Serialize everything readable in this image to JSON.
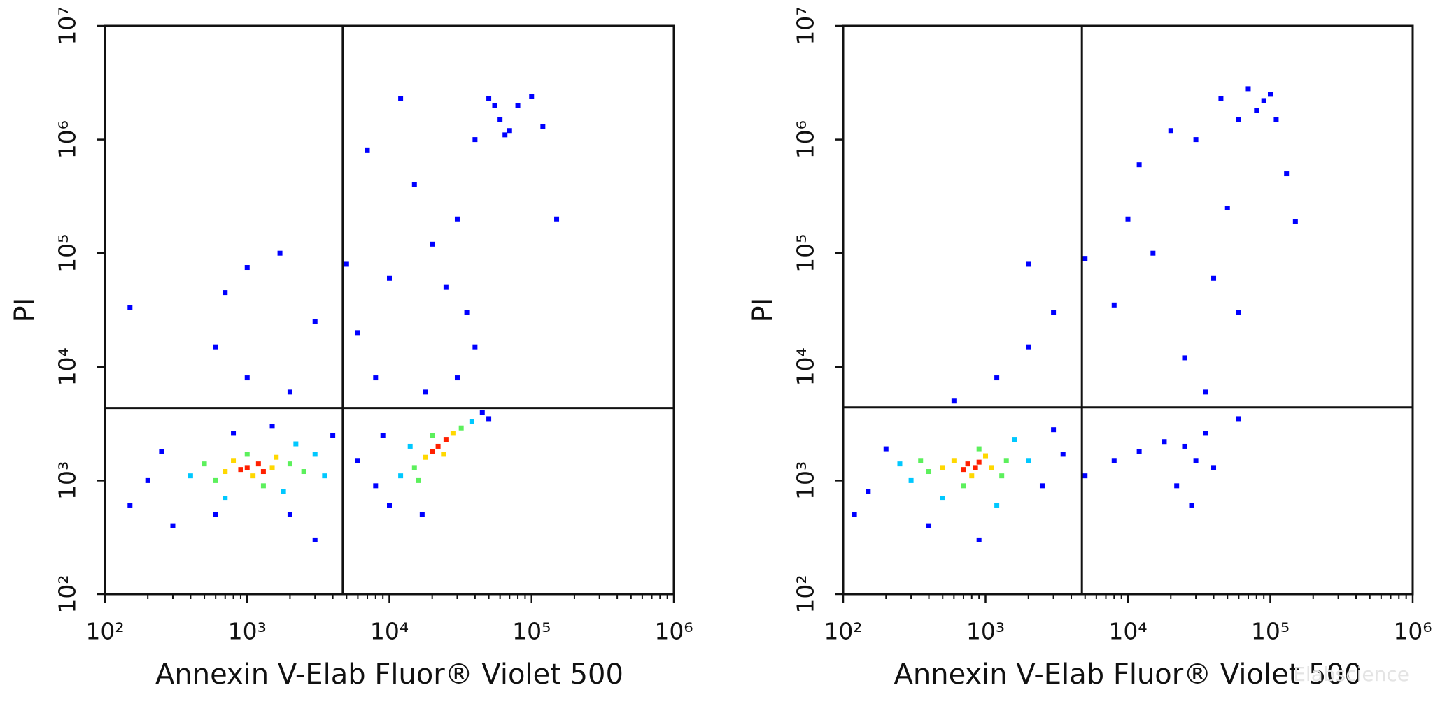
{
  "chart_data": [
    {
      "type": "scatter",
      "xlabel": "Annexin V-Elab Fluor® Violet 500",
      "ylabel": "PI",
      "xscale": "log",
      "yscale": "log",
      "xlim": [
        100,
        1000000
      ],
      "ylim": [
        100,
        10000000
      ],
      "xticks": [
        {
          "value": 100,
          "label": "10²"
        },
        {
          "value": 1000,
          "label": "10³"
        },
        {
          "value": 10000,
          "label": "10⁴"
        },
        {
          "value": 100000,
          "label": "10⁵"
        },
        {
          "value": 1000000,
          "label": "10⁶"
        }
      ],
      "yticks": [
        {
          "value": 100,
          "label": "10²"
        },
        {
          "value": 1000,
          "label": "10³"
        },
        {
          "value": 10000,
          "label": "10⁴"
        },
        {
          "value": 100000,
          "label": "10⁵"
        },
        {
          "value": 1000000,
          "label": "10⁶"
        },
        {
          "value": 10000000,
          "label": "10⁷"
        }
      ],
      "minor_ticks": true,
      "gates": {
        "x": 4700,
        "y": 4350
      },
      "series": [
        {
          "color": "#0000ff",
          "x": [
            200,
            150,
            300,
            250,
            600,
            2000,
            3000,
            4000,
            1500,
            800,
            6000,
            8000,
            10000,
            17000,
            9000,
            45000,
            50000,
            600,
            1000,
            2000,
            3000,
            700,
            1700,
            1000,
            150,
            6000,
            8000,
            10000,
            15000,
            20000,
            25000,
            30000,
            35000,
            40000,
            50000,
            60000,
            70000,
            80000,
            100000,
            65000,
            55000,
            120000,
            150000,
            12000,
            7000,
            5000,
            40000,
            30000,
            18000
          ],
          "y": [
            1000,
            600,
            400,
            1800,
            500,
            500,
            300,
            2500,
            3000,
            2600,
            1500,
            900,
            600,
            500,
            2500,
            4000,
            3500,
            15000,
            8000,
            6000,
            25000,
            45000,
            100000,
            75000,
            33000,
            20000,
            8000,
            60000,
            400000,
            120000,
            50000,
            200000,
            30000,
            1000000,
            2300000,
            1500000,
            1200000,
            2000000,
            2400000,
            1100000,
            2000000,
            1300000,
            200000,
            2300000,
            800000,
            80000,
            15000,
            8000,
            6000
          ]
        },
        {
          "color": "#00c8ff",
          "x": [
            400,
            3000,
            1800,
            700,
            3500,
            12000,
            38000,
            14000,
            2200
          ],
          "y": [
            1100,
            1700,
            800,
            700,
            1100,
            1100,
            3300,
            2000,
            2100
          ]
        },
        {
          "color": "#5cf05c",
          "x": [
            600,
            2000,
            1000,
            500,
            2500,
            1300,
            15000,
            32000,
            20000,
            16000
          ],
          "y": [
            1000,
            1400,
            1700,
            1400,
            1200,
            900,
            1300,
            2900,
            2500,
            1000
          ]
        },
        {
          "color": "#ffd800",
          "x": [
            800,
            1500,
            1100,
            700,
            1600,
            18000,
            28000,
            24000
          ],
          "y": [
            1500,
            1300,
            1100,
            1200,
            1600,
            1600,
            2600,
            1700
          ]
        },
        {
          "color": "#ff2000",
          "x": [
            1000,
            1200,
            900,
            1300,
            22000,
            25000,
            20000
          ],
          "y": [
            1300,
            1400,
            1250,
            1200,
            2000,
            2300,
            1800
          ]
        }
      ]
    },
    {
      "type": "scatter",
      "xlabel": "Annexin V-Elab Fluor® Violet 500",
      "ylabel": "PI",
      "xscale": "log",
      "yscale": "log",
      "xlim": [
        100,
        1000000
      ],
      "ylim": [
        100,
        10000000
      ],
      "xticks": [
        {
          "value": 100,
          "label": "10²"
        },
        {
          "value": 1000,
          "label": "10³"
        },
        {
          "value": 10000,
          "label": "10⁴"
        },
        {
          "value": 100000,
          "label": "10⁵"
        },
        {
          "value": 1000000,
          "label": "10⁶"
        }
      ],
      "yticks": [
        {
          "value": 100,
          "label": "10²"
        },
        {
          "value": 1000,
          "label": "10³"
        },
        {
          "value": 10000,
          "label": "10⁴"
        },
        {
          "value": 100000,
          "label": "10⁵"
        },
        {
          "value": 1000000,
          "label": "10⁶"
        },
        {
          "value": 10000000,
          "label": "10⁷"
        }
      ],
      "minor_ticks": true,
      "gates": {
        "x": 4750,
        "y": 4400
      },
      "watermark": "Elabscience",
      "series": [
        {
          "color": "#0000ff",
          "x": [
            150,
            200,
            120,
            400,
            900,
            2500,
            3500,
            3000,
            5000,
            8000,
            12000,
            18000,
            25000,
            30000,
            22000,
            35000,
            40000,
            28000,
            60000,
            600,
            1200,
            2000,
            3000,
            2000,
            5000,
            8000,
            10000,
            15000,
            12000,
            20000,
            30000,
            45000,
            60000,
            70000,
            80000,
            90000,
            100000,
            110000,
            130000,
            150000,
            50000,
            40000,
            60000,
            25000,
            35000
          ],
          "y": [
            800,
            1900,
            500,
            400,
            300,
            900,
            1700,
            2800,
            1100,
            1500,
            1800,
            2200,
            2000,
            1500,
            900,
            2600,
            1300,
            600,
            3500,
            5000,
            8000,
            15000,
            30000,
            80000,
            90000,
            35000,
            200000,
            100000,
            600000,
            1200000,
            1000000,
            2300000,
            1500000,
            2800000,
            1800000,
            2200000,
            2500000,
            1500000,
            500000,
            190000,
            250000,
            60000,
            30000,
            12000,
            6000
          ]
        },
        {
          "color": "#00c8ff",
          "x": [
            300,
            2000,
            500,
            1600,
            250,
            1200
          ],
          "y": [
            1000,
            1500,
            700,
            2300,
            1400,
            600
          ]
        },
        {
          "color": "#5cf05c",
          "x": [
            400,
            1400,
            700,
            1300,
            900,
            350
          ],
          "y": [
            1200,
            1500,
            900,
            1100,
            1900,
            1500
          ]
        },
        {
          "color": "#ffd800",
          "x": [
            600,
            1100,
            800,
            500,
            1000
          ],
          "y": [
            1500,
            1300,
            1100,
            1300,
            1650
          ]
        },
        {
          "color": "#ff2000",
          "x": [
            750,
            850,
            700,
            900
          ],
          "y": [
            1400,
            1300,
            1250,
            1450
          ]
        }
      ]
    }
  ]
}
